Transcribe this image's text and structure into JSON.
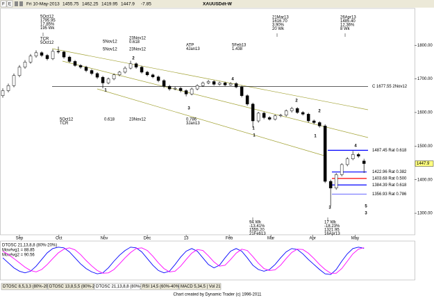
{
  "header": {
    "markers": [
      "F",
      "E"
    ],
    "date": "Fri 10-May-2013",
    "title": "XAUUSDdt-W"
  },
  "chart_data": [
    {
      "type": "candlestick",
      "open": [
        1650,
        1665,
        1680,
        1710,
        1735,
        1750,
        1768,
        1778,
        1770,
        1760,
        1782,
        1780,
        1765,
        1752,
        1740,
        1735,
        1725,
        1716,
        1705,
        1688,
        1700,
        1712,
        1720,
        1732,
        1745,
        1735,
        1720,
        1712,
        1706,
        1695,
        1678,
        1670,
        1672,
        1665,
        1655,
        1670,
        1680,
        1688,
        1692,
        1684,
        1688,
        1682,
        1686,
        1676,
        1650,
        1625,
        1575,
        1598,
        1585,
        1580,
        1590,
        1592,
        1605,
        1612,
        1600,
        1595,
        1575,
        1570,
        1560,
        1395,
        1375,
        1415,
        1445,
        1462,
        1475,
        1455.75
      ],
      "high": [
        1672,
        1686,
        1716,
        1741,
        1756,
        1774,
        1785,
        1782,
        1774,
        1788,
        1795.95,
        1784,
        1769,
        1756,
        1744,
        1739,
        1729,
        1720,
        1709,
        1704,
        1716,
        1724,
        1737,
        1754,
        1749,
        1739,
        1724,
        1716,
        1710,
        1699,
        1682,
        1677,
        1676,
        1669,
        1674,
        1684,
        1692,
        1697,
        1696,
        1692,
        1692,
        1690,
        1690,
        1680,
        1654,
        1629,
        1602,
        1602,
        1589,
        1594,
        1596,
        1609,
        1616.7,
        1616,
        1604,
        1599,
        1579,
        1574,
        1565,
        1400,
        1420,
        1449,
        1467,
        1485.4,
        1480,
        1462.25
      ],
      "low": [
        1644,
        1660,
        1675,
        1705,
        1730,
        1745,
        1763,
        1765,
        1755,
        1756,
        1775,
        1760,
        1748,
        1736,
        1730,
        1720,
        1711,
        1700,
        1672,
        1684,
        1696,
        1708,
        1716,
        1728,
        1730,
        1716,
        1708,
        1702,
        1690,
        1673,
        1665,
        1666,
        1660,
        1648,
        1651,
        1666,
        1676,
        1684,
        1680,
        1680,
        1678,
        1680,
        1672,
        1645,
        1620,
        1555.2,
        1570,
        1580,
        1576,
        1576,
        1586,
        1588,
        1600,
        1596,
        1591,
        1570,
        1565,
        1555,
        1390,
        1321.95,
        1370,
        1410,
        1440,
        1458,
        1465,
        1419.95
      ],
      "close": [
        1665,
        1680,
        1710,
        1735,
        1750,
        1768,
        1778,
        1770,
        1760,
        1782,
        1780,
        1765,
        1752,
        1740,
        1735,
        1725,
        1716,
        1705,
        1688,
        1700,
        1712,
        1720,
        1732,
        1745,
        1735,
        1720,
        1712,
        1706,
        1695,
        1678,
        1670,
        1672,
        1665,
        1655,
        1670,
        1680,
        1688,
        1692,
        1684,
        1688,
        1682,
        1686,
        1676,
        1650,
        1625,
        1575,
        1598,
        1585,
        1580,
        1590,
        1592,
        1605,
        1612,
        1600,
        1595,
        1575,
        1570,
        1560,
        1395,
        1375,
        1415,
        1445,
        1462,
        1475,
        1470,
        1447.9
      ],
      "up_color": "#ffffff",
      "down_color": "#000000",
      "last_price_color": "#ffff80",
      "xlim": [
        -0.5,
        74.1
      ],
      "xticks": [
        {
          "value": 3,
          "label": "Sep"
        },
        {
          "value": 10.1,
          "label": "Oct"
        },
        {
          "value": 18.25,
          "label": "Nov"
        },
        {
          "value": 26,
          "label": "Dec"
        },
        {
          "value": 33,
          "label": "13"
        },
        {
          "value": 40.75,
          "label": "Feb"
        },
        {
          "value": 48.25,
          "label": "Mar"
        },
        {
          "value": 55.75,
          "label": "Apr"
        },
        {
          "value": 63.4,
          "label": "May"
        }
      ],
      "ylim": [
        1236,
        1910
      ],
      "yticks": [
        {
          "value": 1300,
          "label": "1300.00"
        },
        {
          "value": 1400,
          "label": "1400.00"
        },
        {
          "value": 1500,
          "label": "1500.00"
        },
        {
          "value": 1600,
          "label": "1600.00"
        },
        {
          "value": 1700,
          "label": "1700.00"
        },
        {
          "value": 1800,
          "label": "1800.00"
        }
      ],
      "levels": [
        {
          "value": 1677.55,
          "label": "C 1677.55 2Nov12",
          "color": "#000000"
        },
        {
          "value": 1487.45,
          "label": "1487.45 Rat 0.618",
          "color": "#0000ff"
        },
        {
          "value": 1422.96,
          "label": "1422.96 Rat 0.382",
          "color": "#0000ff"
        },
        {
          "value": 1403.68,
          "label": "1403.68 Rat 0.500",
          "color": "#ff0000"
        },
        {
          "value": 1384.39,
          "label": "1384.39 Rat 0.618",
          "color": "#0000ff"
        },
        {
          "value": 1356.93,
          "label": "1356.93 Rat 0.786",
          "color": "#8080ff"
        }
      ],
      "annotations": [
        {
          "lines": [
            "5Oct12",
            "1795.95",
            "17.85%",
            "195 Wk"
          ],
          "color": "#000000"
        },
        {
          "lines": [
            "TCR",
            "5Oct12"
          ],
          "color": "#000000"
        },
        {
          "lines": [
            "5Nov12"
          ],
          "color": "#000000"
        },
        {
          "lines": [
            "5Nov12"
          ],
          "color": "#000000"
        },
        {
          "lines": [
            "23Nov12",
            "0.618"
          ],
          "color": "#ff0000"
        },
        {
          "lines": [
            "23Nov12"
          ],
          "color": "#000000"
        },
        {
          "lines": [
            "ATP",
            "4Jan13"
          ],
          "color": "#000000"
        },
        {
          "lines": [
            "5Feb13",
            "1.438"
          ],
          "color": "#ff0000"
        },
        {
          "lines": [
            "21Mar13",
            "1616.70",
            "3.90%",
            "20 Wk"
          ],
          "color": "#000000"
        },
        {
          "lines": [
            "26Apr13",
            "1485.40",
            "12.36%",
            "8 Wk"
          ],
          "color": "#000000"
        },
        {
          "lines": [
            "5Oct12",
            "TCR"
          ],
          "color": "#000000"
        },
        {
          "lines": [
            "0.618"
          ],
          "color": "#0000ff"
        },
        {
          "lines": [
            "23Nov12"
          ],
          "color": "#000000"
        },
        {
          "lines": [
            "0.786",
            "3Jan13"
          ],
          "color": "#0000ff"
        },
        {
          "lines": [
            "94 Wk",
            "-13.41%",
            "1555.20",
            "21Feb13"
          ],
          "color": "#000000"
        },
        {
          "lines": [
            "17 Wk",
            "-18.23%",
            "1321.95",
            "16Apr13"
          ],
          "color": "#000000"
        }
      ],
      "waves": [
        {
          "text": "1",
          "color": "#000000"
        },
        {
          "text": "2",
          "color": "#000000"
        },
        {
          "text": "3",
          "color": "#000000"
        },
        {
          "text": "4",
          "color": "#000000"
        },
        {
          "text": "1",
          "color": "#000000"
        },
        {
          "text": "1",
          "color": "#1a7a1a"
        },
        {
          "text": "2",
          "color": "#1a7a1a"
        },
        {
          "text": "2",
          "color": "#000000"
        },
        {
          "text": "1",
          "color": "#000000"
        },
        {
          "text": "3",
          "color": "#000000"
        },
        {
          "text": "4",
          "color": "#000000"
        },
        {
          "text": "5",
          "color": "#000080"
        },
        {
          "text": "3",
          "color": "#1a7a1a"
        }
      ]
    },
    {
      "type": "line",
      "title": "DTOSC 21,13,8,8 (80%-20%)",
      "ylim": [
        0,
        100
      ],
      "series": [
        {
          "name": "MovAvg1 = 88.85",
          "color": "#0000ff",
          "values": [
            60,
            45,
            30,
            20,
            15,
            20,
            35,
            55,
            75,
            88,
            92,
            90,
            78,
            60,
            42,
            28,
            18,
            12,
            15,
            30,
            50,
            68,
            82,
            92,
            90,
            78,
            58,
            38,
            22,
            15,
            20,
            40,
            62,
            80,
            88,
            80,
            60,
            40,
            30,
            38,
            60,
            80,
            88,
            80,
            60,
            38,
            25,
            20,
            25,
            40,
            60,
            78,
            88,
            85,
            72,
            55,
            40,
            25,
            12,
            10,
            25,
            50,
            72,
            88,
            92,
            88.85
          ]
        },
        {
          "name": "MovAvg2 = 90.56",
          "color": "#ff00ff",
          "values": [
            80,
            70,
            58,
            45,
            32,
            22,
            18,
            25,
            40,
            58,
            75,
            86,
            90,
            84,
            70,
            52,
            36,
            22,
            14,
            15,
            25,
            42,
            60,
            76,
            88,
            90,
            82,
            65,
            45,
            28,
            18,
            20,
            35,
            55,
            74,
            85,
            82,
            66,
            48,
            35,
            38,
            55,
            74,
            86,
            82,
            64,
            44,
            28,
            22,
            24,
            38,
            58,
            76,
            86,
            85,
            74,
            58,
            40,
            25,
            14,
            14,
            28,
            50,
            72,
            86,
            90.56
          ]
        }
      ]
    }
  ],
  "tabs": [
    "DTOSC 8,5,3,3 (80%-20%)",
    "DTOSC 13,8,5,5 (80%-20%)",
    "DTOSC 21,13,8,8 (80%-20%)",
    "RSI 14,5 (60%-40%)",
    "MACD 5,34,5 | Vol 21"
  ],
  "footer": "Chart created by Dynamic Trader  (c) 1996-2011"
}
